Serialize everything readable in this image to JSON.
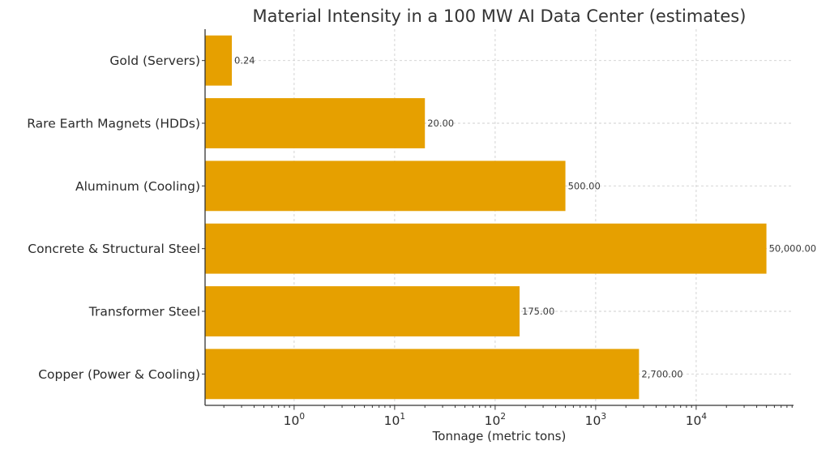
{
  "chart_data": {
    "type": "bar",
    "orientation": "horizontal",
    "title": "Material Intensity in a 100 MW AI Data Center (estimates)",
    "xlabel": "Tonnage (metric tons)",
    "ylabel": "",
    "xscale": "log",
    "xlim": [
      0.13,
      93000
    ],
    "grid": true,
    "bar_color": "#E6A000",
    "categories": [
      "Gold (Servers)",
      "Rare Earth Magnets (HDDs)",
      "Aluminum (Cooling)",
      "Concrete & Structural Steel",
      "Transformer Steel",
      "Copper (Power & Cooling)"
    ],
    "values": [
      0.24,
      20,
      500,
      50000,
      175,
      2700
    ],
    "value_labels": [
      "0.24",
      "20.00",
      "500.00",
      "50,000.00",
      "175.00",
      "2,700.00"
    ],
    "x_ticks": [
      {
        "value": 1,
        "base": "10",
        "exp": "0"
      },
      {
        "value": 10,
        "base": "10",
        "exp": "1"
      },
      {
        "value": 100,
        "base": "10",
        "exp": "2"
      },
      {
        "value": 1000,
        "base": "10",
        "exp": "3"
      },
      {
        "value": 10000,
        "base": "10",
        "exp": "4"
      }
    ]
  }
}
